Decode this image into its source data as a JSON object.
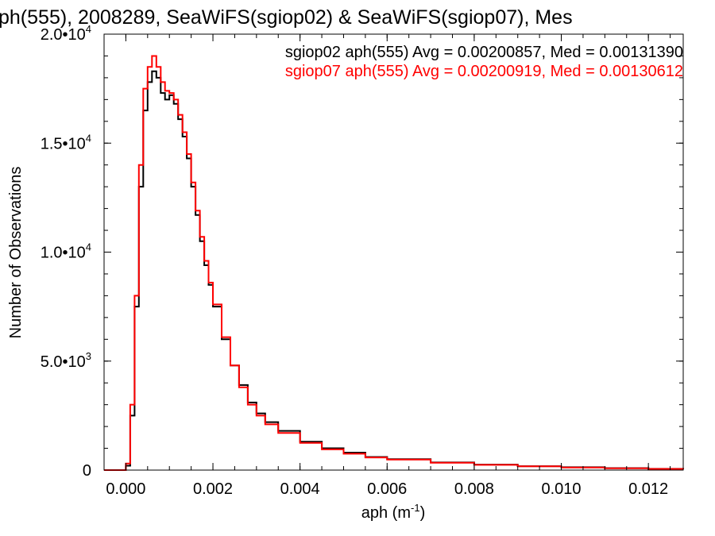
{
  "chart_data": {
    "type": "line",
    "title": "ph(555), 2008289, SeaWiFS(sgiop02) & SeaWiFS(sgiop07), Mes",
    "xlabel": {
      "base": "aph (m",
      "sup": "-1",
      "end": ")"
    },
    "ylabel": "Number of Observations",
    "xlim": [
      -0.0005,
      0.0128
    ],
    "ylim": [
      0,
      20000
    ],
    "x_ticks": [
      {
        "value": 0.0,
        "label": "0.000"
      },
      {
        "value": 0.002,
        "label": "0.002"
      },
      {
        "value": 0.004,
        "label": "0.004"
      },
      {
        "value": 0.006,
        "label": "0.006"
      },
      {
        "value": 0.008,
        "label": "0.008"
      },
      {
        "value": 0.01,
        "label": "0.010"
      },
      {
        "value": 0.012,
        "label": "0.012"
      }
    ],
    "y_ticks": [
      {
        "value": 0,
        "mant": "0",
        "exp": ""
      },
      {
        "value": 5000,
        "mant": "5.0•10",
        "exp": "3"
      },
      {
        "value": 10000,
        "mant": "1.0•10",
        "exp": "4"
      },
      {
        "value": 15000,
        "mant": "1.5•10",
        "exp": "4"
      },
      {
        "value": 20000,
        "mant": "2.0•10",
        "exp": "4"
      }
    ],
    "grid": false,
    "legend": [
      {
        "text": "sgiop02 aph(555) Avg = 0.00200857, Med = 0.00131390",
        "color": "#000000"
      },
      {
        "text": "sgiop07 aph(555) Avg = 0.00200919, Med = 0.00130612",
        "color": "#ff0000"
      }
    ],
    "series": [
      {
        "color": "#000000",
        "x": [
          -0.0005,
          0.0,
          0.0001,
          0.0002,
          0.0003,
          0.0004,
          0.0005,
          0.0006,
          0.0007,
          0.0008,
          0.0009,
          0.001,
          0.0011,
          0.0012,
          0.0013,
          0.0014,
          0.0015,
          0.0016,
          0.0017,
          0.0018,
          0.0019,
          0.002,
          0.0022,
          0.0024,
          0.0026,
          0.0028,
          0.003,
          0.0032,
          0.0035,
          0.004,
          0.0045,
          0.005,
          0.0055,
          0.006,
          0.007,
          0.008,
          0.009,
          0.01,
          0.011,
          0.012,
          0.0128
        ],
        "values": [
          0,
          200,
          2500,
          7500,
          13000,
          16500,
          17800,
          18300,
          18000,
          17300,
          17000,
          17200,
          16800,
          16100,
          15300,
          14300,
          13000,
          11700,
          10500,
          9400,
          8500,
          7500,
          6000,
          4800,
          3900,
          3100,
          2600,
          2200,
          1800,
          1300,
          1000,
          800,
          600,
          500,
          350,
          250,
          180,
          130,
          90,
          60,
          40
        ]
      },
      {
        "color": "#ff0000",
        "x": [
          -0.0005,
          0.0,
          0.0001,
          0.0002,
          0.0003,
          0.0004,
          0.0005,
          0.0006,
          0.0007,
          0.0008,
          0.0009,
          0.001,
          0.0011,
          0.0012,
          0.0013,
          0.0014,
          0.0015,
          0.0016,
          0.0017,
          0.0018,
          0.0019,
          0.002,
          0.0022,
          0.0024,
          0.0026,
          0.0028,
          0.003,
          0.0032,
          0.0035,
          0.004,
          0.0045,
          0.005,
          0.0055,
          0.006,
          0.007,
          0.008,
          0.009,
          0.01,
          0.011,
          0.012,
          0.0128
        ],
        "values": [
          0,
          300,
          3000,
          8000,
          14000,
          17500,
          18500,
          19000,
          18500,
          17800,
          17400,
          17300,
          17000,
          16300,
          15500,
          14500,
          13200,
          11900,
          10700,
          9600,
          8600,
          7600,
          6100,
          4800,
          3800,
          3000,
          2500,
          2100,
          1700,
          1250,
          950,
          750,
          580,
          480,
          340,
          240,
          170,
          120,
          85,
          55,
          35
        ]
      }
    ]
  }
}
